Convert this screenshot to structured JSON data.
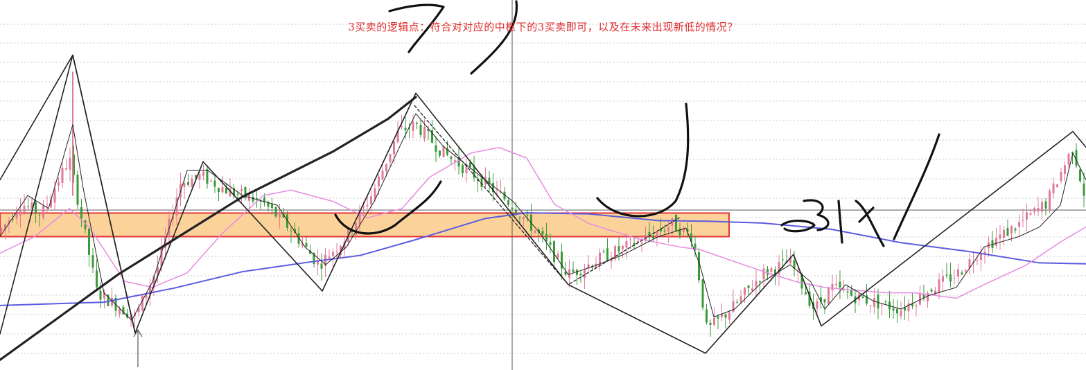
{
  "annotation": {
    "text": "3买卖的逻辑点：符合对对应的中枢下的3买卖即可，以及在未来出现新低的情况？",
    "color": "#e02a2a"
  },
  "handwriting": {
    "mark_3buy": "3 买"
  },
  "chart_data": {
    "type": "candlestick",
    "title": "",
    "xlabel": "",
    "ylabel": "",
    "ylim": [
      0,
      100
    ],
    "xlim": [
      0,
      1567
    ],
    "grid": "dotted horizontal",
    "colors": {
      "up": "#e07b9a",
      "down": "#3a9a3a",
      "ma_short": "#222222",
      "ma_mid": "#e88be0",
      "ma_long": "#5b5be0",
      "zone_fill": "#fbd39a",
      "zone_border": "#e23434",
      "stroke_lines": "#222222"
    },
    "zhongshu_zone": {
      "x_range": [
        0,
        1052
      ],
      "y_range": [
        41.4,
        49.2
      ]
    },
    "crosshair": {
      "x": 739,
      "y": 50.2
    },
    "stroke_points": [
      [
        0,
        60.2
      ],
      [
        105,
        101.5
      ],
      [
        195,
        9.5
      ],
      [
        293,
        66.2
      ],
      [
        465,
        23.4
      ],
      [
        600,
        88.9
      ],
      [
        820,
        25.5
      ],
      [
        1018,
        2.8
      ],
      [
        1145,
        35.5
      ],
      [
        1185,
        11.8
      ],
      [
        1548,
        76.2
      ],
      [
        1567,
        71.0
      ]
    ],
    "left_stroke": [
      [
        0,
        9.2
      ],
      [
        105,
        101.5
      ],
      [
        195,
        9.5
      ]
    ],
    "dashed_channel": [
      [
        598,
        84.8
      ],
      [
        820,
        25.5
      ],
      [
        980,
        47.6
      ]
    ],
    "big_trendline": [
      [
        0,
        0.6
      ],
      [
        170,
        28.8
      ],
      [
        350,
        54.6
      ],
      [
        480,
        69.5
      ],
      [
        560,
        80.4
      ],
      [
        600,
        87.6
      ]
    ],
    "ma_long": [
      [
        0,
        18.6
      ],
      [
        150,
        19.7
      ],
      [
        250,
        24.3
      ],
      [
        350,
        29.8
      ],
      [
        450,
        33.1
      ],
      [
        520,
        35.2
      ],
      [
        600,
        40.4
      ],
      [
        700,
        47.4
      ],
      [
        760,
        49.3
      ],
      [
        850,
        48.9
      ],
      [
        950,
        46.7
      ],
      [
        1020,
        46.5
      ],
      [
        1100,
        45.9
      ],
      [
        1200,
        43.8
      ],
      [
        1300,
        39.4
      ],
      [
        1400,
        36.4
      ],
      [
        1500,
        32.7
      ],
      [
        1567,
        32.4
      ]
    ],
    "ma_mid": [
      [
        0,
        35.9
      ],
      [
        50,
        41.4
      ],
      [
        100,
        50.7
      ],
      [
        130,
        44.2
      ],
      [
        180,
        26.6
      ],
      [
        220,
        24.6
      ],
      [
        270,
        29.4
      ],
      [
        320,
        42.3
      ],
      [
        380,
        55.0
      ],
      [
        420,
        56.8
      ],
      [
        480,
        53.1
      ],
      [
        530,
        47.6
      ],
      [
        580,
        50.7
      ],
      [
        620,
        61.1
      ],
      [
        680,
        69.1
      ],
      [
        720,
        70.9
      ],
      [
        760,
        67.4
      ],
      [
        800,
        52.1
      ],
      [
        850,
        45.7
      ],
      [
        920,
        40.7
      ],
      [
        980,
        38.0
      ],
      [
        1010,
        37.1
      ],
      [
        1060,
        33.1
      ],
      [
        1110,
        29.2
      ],
      [
        1150,
        26.4
      ],
      [
        1190,
        24.6
      ],
      [
        1230,
        23.7
      ],
      [
        1280,
        22.8
      ],
      [
        1320,
        22.8
      ],
      [
        1380,
        21.0
      ],
      [
        1420,
        25.5
      ],
      [
        1480,
        31.9
      ],
      [
        1530,
        39.6
      ],
      [
        1567,
        44.6
      ]
    ],
    "ma_short": [
      [
        0,
        41.4
      ],
      [
        40,
        55.0
      ],
      [
        70,
        50.7
      ],
      [
        105,
        78.5
      ],
      [
        120,
        57.5
      ],
      [
        150,
        22.8
      ],
      [
        190,
        13.7
      ],
      [
        220,
        26.4
      ],
      [
        270,
        63.3
      ],
      [
        300,
        63.3
      ],
      [
        350,
        55.0
      ],
      [
        400,
        51.8
      ],
      [
        440,
        38.0
      ],
      [
        470,
        32.1
      ],
      [
        500,
        38.0
      ],
      [
        540,
        53.1
      ],
      [
        580,
        72.8
      ],
      [
        600,
        82.1
      ],
      [
        640,
        71.2
      ],
      [
        700,
        60.2
      ],
      [
        740,
        53.1
      ],
      [
        780,
        42.3
      ],
      [
        820,
        28.8
      ],
      [
        860,
        31.9
      ],
      [
        900,
        35.5
      ],
      [
        950,
        41.4
      ],
      [
        990,
        44.2
      ],
      [
        1010,
        31.9
      ],
      [
        1030,
        14.8
      ],
      [
        1060,
        17.4
      ],
      [
        1100,
        26.4
      ],
      [
        1140,
        32.1
      ],
      [
        1170,
        26.4
      ],
      [
        1190,
        17.4
      ],
      [
        1220,
        25.5
      ],
      [
        1260,
        20.1
      ],
      [
        1300,
        17.4
      ],
      [
        1340,
        21.9
      ],
      [
        1380,
        24.6
      ],
      [
        1420,
        38.0
      ],
      [
        1470,
        41.4
      ],
      [
        1500,
        44.6
      ],
      [
        1530,
        51.8
      ],
      [
        1548,
        69.1
      ],
      [
        1567,
        60.2
      ]
    ],
    "candle_anchors": [
      [
        0,
        43.2
      ],
      [
        30,
        52.5
      ],
      [
        60,
        48.7
      ],
      [
        100,
        67.4
      ],
      [
        115,
        50.7
      ],
      [
        140,
        22.8
      ],
      [
        195,
        14.8
      ],
      [
        230,
        32.8
      ],
      [
        260,
        59.2
      ],
      [
        290,
        61.5
      ],
      [
        330,
        56.5
      ],
      [
        380,
        52.5
      ],
      [
        420,
        43.8
      ],
      [
        460,
        32.1
      ],
      [
        500,
        41.4
      ],
      [
        540,
        56.8
      ],
      [
        575,
        76.2
      ],
      [
        600,
        78.5
      ],
      [
        640,
        69.1
      ],
      [
        700,
        59.2
      ],
      [
        740,
        51.8
      ],
      [
        780,
        41.4
      ],
      [
        820,
        28.8
      ],
      [
        870,
        34.6
      ],
      [
        920,
        39.6
      ],
      [
        970,
        45.5
      ],
      [
        1000,
        41.4
      ],
      [
        1020,
        10.1
      ],
      [
        1060,
        18.6
      ],
      [
        1100,
        29.2
      ],
      [
        1140,
        33.1
      ],
      [
        1175,
        17.4
      ],
      [
        1200,
        24.6
      ],
      [
        1240,
        21.0
      ],
      [
        1300,
        17.4
      ],
      [
        1340,
        23.7
      ],
      [
        1380,
        28.8
      ],
      [
        1420,
        38.0
      ],
      [
        1470,
        45.5
      ],
      [
        1510,
        52.5
      ],
      [
        1548,
        71.0
      ],
      [
        1567,
        53.1
      ]
    ],
    "volatility_burst": [
      [
        105,
        96.0,
        54.9
      ]
    ]
  }
}
